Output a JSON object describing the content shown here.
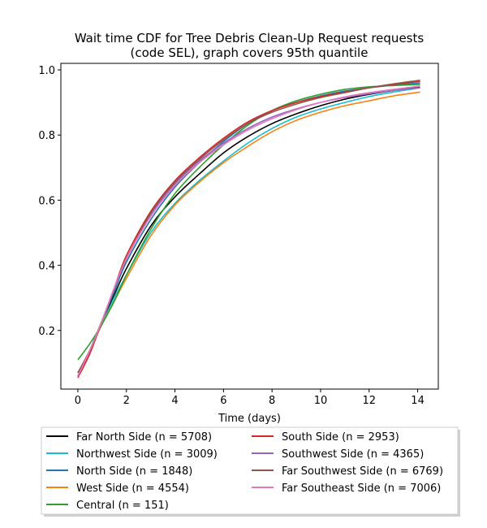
{
  "chart_data": {
    "type": "line",
    "title_lines": [
      "Wait time CDF for Tree Debris Clean-Up Request  requests",
      "(code SEL), graph covers 95th quantile"
    ],
    "xlabel": "Time (days)",
    "ylabel": "",
    "xlim": [
      -0.7,
      14.85
    ],
    "ylim": [
      0.02,
      1.02
    ],
    "xticks": [
      0,
      2,
      4,
      6,
      8,
      10,
      12,
      14
    ],
    "yticks": [
      0.2,
      0.4,
      0.6,
      0.8,
      1.0
    ],
    "ytick_labels": [
      "0.2",
      "0.4",
      "0.6",
      "0.8",
      "1.0"
    ],
    "x": [
      0,
      0.5,
      1,
      1.5,
      2,
      3,
      4,
      5,
      6,
      7,
      8,
      9,
      10,
      11,
      12,
      13,
      14.1
    ],
    "series": [
      {
        "name": "Far North Side (n = 5708)",
        "color": "#000000",
        "values": [
          0.06,
          0.14,
          0.23,
          0.31,
          0.39,
          0.52,
          0.61,
          0.68,
          0.745,
          0.795,
          0.835,
          0.865,
          0.89,
          0.91,
          0.925,
          0.937,
          0.948
        ]
      },
      {
        "name": "Northwest Side (n = 3009)",
        "color": "#17becf",
        "values": [
          0.07,
          0.14,
          0.22,
          0.3,
          0.37,
          0.5,
          0.59,
          0.66,
          0.72,
          0.775,
          0.82,
          0.855,
          0.88,
          0.9,
          0.918,
          0.932,
          0.945
        ]
      },
      {
        "name": "North Side (n = 1848)",
        "color": "#1f77b4",
        "values": [
          0.06,
          0.14,
          0.23,
          0.32,
          0.41,
          0.54,
          0.64,
          0.715,
          0.78,
          0.835,
          0.875,
          0.9,
          0.92,
          0.935,
          0.945,
          0.953,
          0.96
        ]
      },
      {
        "name": "West Side (n = 4554)",
        "color": "#ff7f0e",
        "values": [
          0.07,
          0.14,
          0.22,
          0.29,
          0.36,
          0.49,
          0.585,
          0.655,
          0.715,
          0.765,
          0.81,
          0.845,
          0.87,
          0.89,
          0.905,
          0.92,
          0.932
        ]
      },
      {
        "name": "Central (n = 151)",
        "color": "#2ca02c",
        "values": [
          0.11,
          0.16,
          0.22,
          0.29,
          0.37,
          0.51,
          0.62,
          0.7,
          0.77,
          0.83,
          0.875,
          0.905,
          0.925,
          0.94,
          0.948,
          0.952,
          0.955
        ]
      },
      {
        "name": "South Side (n = 2953)",
        "color": "#d62728",
        "values": [
          0.055,
          0.13,
          0.23,
          0.33,
          0.43,
          0.565,
          0.66,
          0.73,
          0.79,
          0.84,
          0.875,
          0.9,
          0.918,
          0.932,
          0.945,
          0.955,
          0.965
        ]
      },
      {
        "name": "Southwest Side (n = 4365)",
        "color": "#9467bd",
        "values": [
          0.06,
          0.14,
          0.23,
          0.33,
          0.42,
          0.555,
          0.65,
          0.72,
          0.775,
          0.82,
          0.855,
          0.88,
          0.9,
          0.915,
          0.927,
          0.937,
          0.945
        ]
      },
      {
        "name": "Far Southwest Side (n = 6769)",
        "color": "#8c564b",
        "values": [
          0.07,
          0.14,
          0.23,
          0.33,
          0.42,
          0.56,
          0.655,
          0.725,
          0.785,
          0.835,
          0.87,
          0.895,
          0.915,
          0.93,
          0.945,
          0.957,
          0.968
        ]
      },
      {
        "name": "Far Southeast Side (n = 7006)",
        "color": "#e377c2",
        "values": [
          0.06,
          0.14,
          0.23,
          0.33,
          0.42,
          0.55,
          0.645,
          0.715,
          0.77,
          0.815,
          0.85,
          0.878,
          0.9,
          0.917,
          0.93,
          0.94,
          0.95
        ]
      }
    ],
    "legend_position": "below the plot, two columns",
    "grid": false
  }
}
